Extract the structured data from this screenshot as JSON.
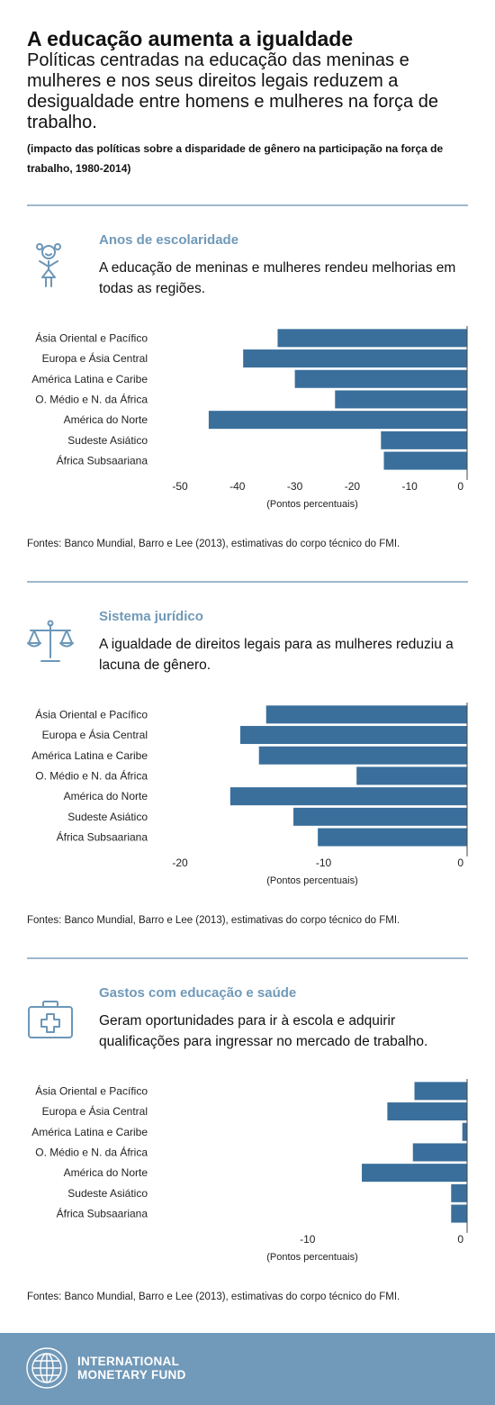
{
  "header": {
    "title": "A educação aumenta a igualdade",
    "subtitle": "Políticas centradas na educação das meninas e mulheres e nos seus direitos legais reduzem a desigualdade entre homens e mulheres na força de trabalho.",
    "note": "(impacto das políticas sobre a disparidade de gênero na participação na força de trabalho, 1980-2014)"
  },
  "sections": [
    {
      "heading": "Anos de escolaridade",
      "description": "A educação de meninas e mulheres rendeu melhorias em todas as regiões.",
      "icon": "girl-student-icon",
      "source": "Fontes: Banco Mundial, Barro e Lee (2013), estimativas do corpo técnico do FMI."
    },
    {
      "heading": "Sistema jurídico",
      "description": "A igualdade de direitos legais para as mulheres reduziu a lacuna de gênero.",
      "icon": "scales-of-justice-icon",
      "source": "Fontes: Banco Mundial, Barro e Lee (2013), estimativas do corpo técnico do FMI."
    },
    {
      "heading": "Gastos com educação e saúde",
      "description": "Geram oportunidades para ir à escola e adquirir qualificações para ingressar no mercado de trabalho.",
      "icon": "medical-kit-icon",
      "source": "Fontes: Banco Mundial, Barro e Lee (2013), estimativas do corpo técnico do FMI."
    }
  ],
  "chart_data": [
    {
      "type": "bar",
      "orientation": "horizontal",
      "categories": [
        "Ásia Oriental e Pacífico",
        "Europa e Ásia Central",
        "América Latina e Caribe",
        "O. Médio e N. da África",
        "América do Norte",
        "Sudeste Asiático",
        "África Subsaariana"
      ],
      "values": [
        -33,
        -39,
        -30,
        -23,
        -45,
        -15,
        -14.5
      ],
      "xlim": [
        -50,
        0
      ],
      "xticks": [
        "-50",
        "-40",
        "-30",
        "-20",
        "-10",
        "0"
      ],
      "xlabel": "(Pontos percentuais)",
      "bar_color": "#3a6f9c"
    },
    {
      "type": "bar",
      "orientation": "horizontal",
      "categories": [
        "Ásia Oriental e Pacífico",
        "Europa e Ásia Central",
        "América Latina e Caribe",
        "O. Médio e N. da África",
        "América do Norte",
        "Sudeste Asiático",
        "África Subsaariana"
      ],
      "values": [
        -14,
        -15.8,
        -14.5,
        -7.7,
        -16.5,
        -12.1,
        -10.4
      ],
      "xlim": [
        -20,
        0
      ],
      "xticks": [
        "-20",
        "-10",
        "0"
      ],
      "xlabel": "(Pontos percentuais)",
      "bar_color": "#3a6f9c"
    },
    {
      "type": "bar",
      "orientation": "horizontal",
      "categories": [
        "Ásia Oriental e Pacífico",
        "Europa e Ásia Central",
        "América Latina e Caribe",
        "O. Médio e N. da África",
        "América do Norte",
        "Sudeste Asiático",
        "África Subsaariana"
      ],
      "values": [
        -3.3,
        -5,
        -0.3,
        -3.4,
        -6.6,
        -1,
        -1
      ],
      "xlim": [
        -18,
        0
      ],
      "xticks": [
        "-10",
        "0"
      ],
      "xlabel": "(Pontos percentuais)",
      "bar_color": "#3a6f9c"
    }
  ],
  "footer": {
    "org_line1": "INTERNATIONAL",
    "org_line2": "MONETARY FUND"
  },
  "colors": {
    "accent": "#7099b8",
    "bar": "#3a6f9c",
    "footer": "#7199b9",
    "divider": "#9fb8cc"
  }
}
